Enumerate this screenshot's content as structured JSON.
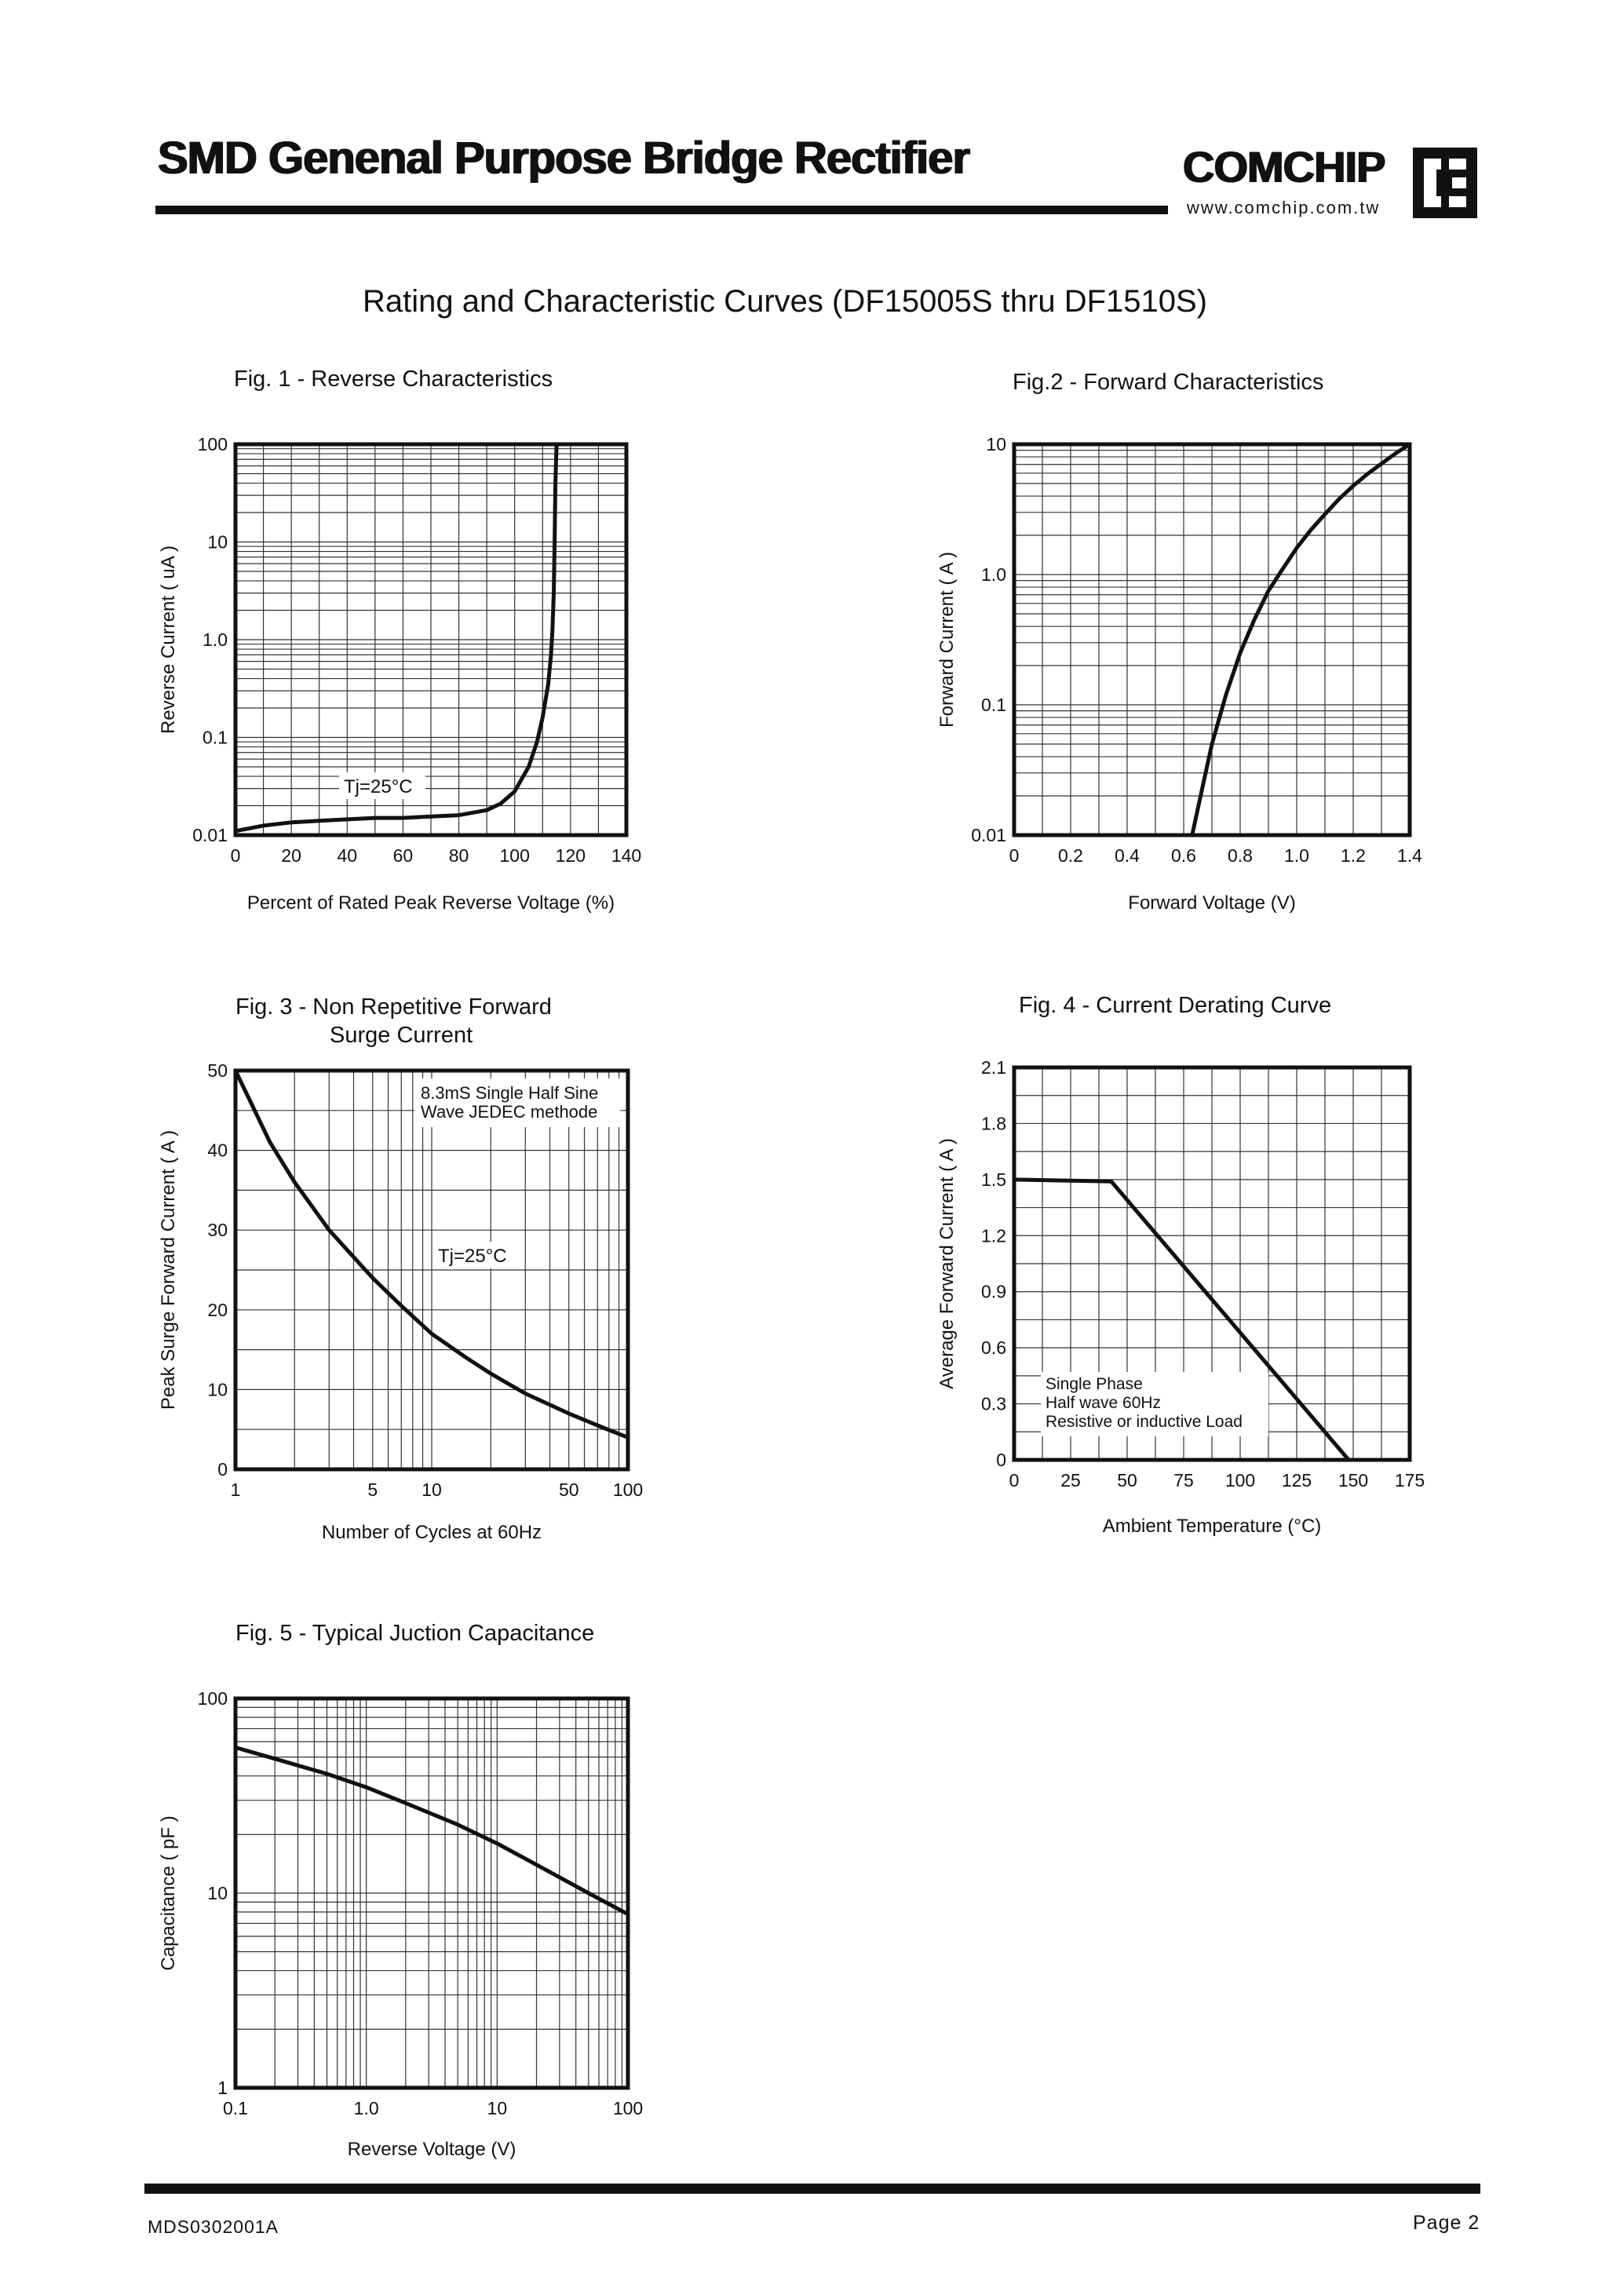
{
  "header": {
    "title": "SMD Genenal Purpose Bridge Rectifier",
    "brand": "COMCHIP",
    "url": "www.comchip.com.tw",
    "logo": "comchip-ce-logo"
  },
  "page_heading": "Rating and Characteristic Curves (DF15005S thru DF1510S)",
  "footer": {
    "doc_code": "MDS0302001A",
    "page": "Page 2"
  },
  "chart_data": [
    {
      "id": "fig1",
      "type": "line",
      "title": "Fig. 1 -  Reverse Characteristics",
      "xlabel": "Percent of Rated Peak Reverse Voltage (%)",
      "ylabel": "Reverse Current ( uA )",
      "xscale": "linear",
      "yscale": "log",
      "xlim": [
        0,
        140
      ],
      "ylim": [
        0.01,
        100
      ],
      "xticks": [
        "0",
        "20",
        "40",
        "60",
        "80",
        "100",
        "120",
        "140"
      ],
      "yticks": [
        "0.01",
        "0.1",
        "1.0",
        "10",
        "100"
      ],
      "grid": true,
      "annotations": [
        "Tj=25°C"
      ],
      "series": [
        {
          "x": [
            0,
            10,
            20,
            30,
            40,
            50,
            60,
            70,
            80,
            90,
            95,
            100,
            105,
            108,
            110,
            112,
            113,
            113.5,
            114,
            114.3,
            114.6,
            115
          ],
          "y": [
            0.011,
            0.0125,
            0.0135,
            0.014,
            0.0145,
            0.015,
            0.015,
            0.0155,
            0.016,
            0.018,
            0.021,
            0.028,
            0.05,
            0.09,
            0.16,
            0.35,
            0.7,
            1.2,
            3,
            10,
            40,
            100
          ]
        }
      ]
    },
    {
      "id": "fig2",
      "type": "line",
      "title": "Fig.2 -  Forward Characteristics",
      "xlabel": "Forward Voltage (V)",
      "ylabel": "Forward Current ( A )",
      "xscale": "linear",
      "yscale": "log",
      "xlim": [
        0,
        1.4
      ],
      "ylim": [
        0.01,
        10
      ],
      "xticks": [
        "0",
        "0.2",
        "0.4",
        "0.6",
        "0.8",
        "1.0",
        "1.2",
        "1.4"
      ],
      "yticks": [
        "0.01",
        "0.1",
        "1.0",
        "10"
      ],
      "grid": true,
      "series": [
        {
          "x": [
            0.63,
            0.66,
            0.7,
            0.75,
            0.8,
            0.85,
            0.9,
            0.95,
            1.0,
            1.05,
            1.1,
            1.15,
            1.2,
            1.25,
            1.3,
            1.35,
            1.4
          ],
          "y": [
            0.01,
            0.02,
            0.05,
            0.12,
            0.25,
            0.45,
            0.75,
            1.1,
            1.6,
            2.2,
            2.9,
            3.8,
            4.8,
            5.9,
            7.1,
            8.5,
            10
          ]
        }
      ]
    },
    {
      "id": "fig3",
      "type": "line",
      "title": "Fig. 3 -  Non Repetitive Forward",
      "title_line2": "Surge Current",
      "xlabel": "Number of Cycles at 60Hz",
      "ylabel": "Peak Surge Forward Current ( A )",
      "xscale": "log",
      "yscale": "linear",
      "xlim": [
        1,
        100
      ],
      "ylim": [
        0,
        50
      ],
      "xticks": [
        "1",
        "5",
        "10",
        "50",
        "100"
      ],
      "yticks": [
        "0",
        "10",
        "20",
        "30",
        "40",
        "50"
      ],
      "grid": true,
      "annotations": [
        "8.3mS Single Half Sine",
        "Wave JEDEC methode",
        "Tj=25°C"
      ],
      "series": [
        {
          "x": [
            1,
            1.5,
            2,
            3,
            5,
            7,
            10,
            15,
            20,
            30,
            50,
            70,
            100
          ],
          "y": [
            50,
            41,
            36,
            30,
            24,
            20.5,
            17,
            14,
            12,
            9.5,
            7,
            5.5,
            4
          ]
        }
      ]
    },
    {
      "id": "fig4",
      "type": "line",
      "title": "Fig. 4 - Current Derating Curve",
      "xlabel": "Ambient Temperature (°C)",
      "ylabel": "Average Forward Current ( A )",
      "xscale": "linear",
      "yscale": "linear",
      "xlim": [
        0,
        175
      ],
      "ylim": [
        0,
        2.1
      ],
      "xticks": [
        "0",
        "25",
        "50",
        "75",
        "100",
        "125",
        "150",
        "175"
      ],
      "yticks": [
        "0",
        "0.3",
        "0.6",
        "0.9",
        "1.2",
        "1.5",
        "1.8",
        "2.1"
      ],
      "grid": true,
      "annotations": [
        "Single Phase",
        "Half wave 60Hz",
        "Resistive or inductive Load"
      ],
      "series": [
        {
          "x": [
            0,
            43,
            148
          ],
          "y": [
            1.5,
            1.49,
            0
          ]
        }
      ]
    },
    {
      "id": "fig5",
      "type": "line",
      "title": "Fig. 5 -  Typical Juction Capacitance",
      "xlabel": "Reverse Voltage (V)",
      "ylabel": "Capacitance ( pF )",
      "xscale": "log",
      "yscale": "log",
      "xlim": [
        0.1,
        100
      ],
      "ylim": [
        1,
        100
      ],
      "xticks": [
        "0.1",
        "1.0",
        "10",
        "100"
      ],
      "yticks": [
        "1",
        "10",
        "100"
      ],
      "grid": true,
      "series": [
        {
          "x": [
            0.1,
            0.2,
            0.5,
            1,
            2,
            5,
            10,
            20,
            50,
            100
          ],
          "y": [
            56,
            49,
            41,
            35,
            29,
            22.5,
            18,
            14,
            10,
            7.8
          ]
        }
      ]
    }
  ]
}
